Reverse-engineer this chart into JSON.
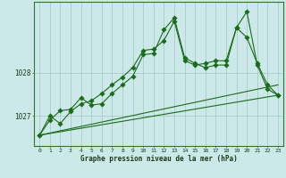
{
  "background_color": "#cde8e8",
  "grid_color": "#aacccc",
  "line_color": "#1a6b1a",
  "title": "Graphe pression niveau de la mer (hPa)",
  "x_ticks": [
    0,
    1,
    2,
    3,
    4,
    5,
    6,
    7,
    8,
    9,
    10,
    11,
    12,
    13,
    14,
    15,
    16,
    17,
    18,
    19,
    20,
    21,
    22,
    23
  ],
  "y_ticks": [
    1027,
    1028
  ],
  "ylim": [
    1026.3,
    1029.65
  ],
  "xlim": [
    -0.5,
    23.5
  ],
  "line1_x": [
    0,
    1,
    2,
    3,
    4,
    5,
    6,
    7,
    8,
    9,
    10,
    11,
    12,
    13,
    14,
    15,
    16,
    17,
    18,
    19,
    20,
    21,
    22,
    23
  ],
  "line1_y": [
    1026.55,
    1027.0,
    1026.82,
    1027.1,
    1027.28,
    1027.35,
    1027.52,
    1027.72,
    1027.9,
    1028.12,
    1028.52,
    1028.55,
    1028.75,
    1029.2,
    1028.28,
    1028.18,
    1028.22,
    1028.28,
    1028.28,
    1029.05,
    1029.42,
    1028.18,
    1027.62,
    1027.48
  ],
  "line2_x": [
    0,
    1,
    2,
    3,
    4,
    5,
    6,
    7,
    8,
    9,
    10,
    11,
    12,
    13,
    14,
    15,
    16,
    17,
    18,
    19,
    20,
    21,
    22,
    23
  ],
  "line2_y": [
    1026.55,
    1026.9,
    1027.12,
    1027.15,
    1027.42,
    1027.25,
    1027.28,
    1027.52,
    1027.72,
    1027.92,
    1028.42,
    1028.45,
    1029.0,
    1029.28,
    1028.35,
    1028.22,
    1028.12,
    1028.18,
    1028.18,
    1029.05,
    1028.82,
    1028.22,
    1027.72,
    1027.48
  ],
  "line3_x": [
    0,
    23
  ],
  "line3_y": [
    1026.55,
    1027.48
  ],
  "line4_x": [
    0,
    23
  ],
  "line4_y": [
    1026.55,
    1027.72
  ]
}
